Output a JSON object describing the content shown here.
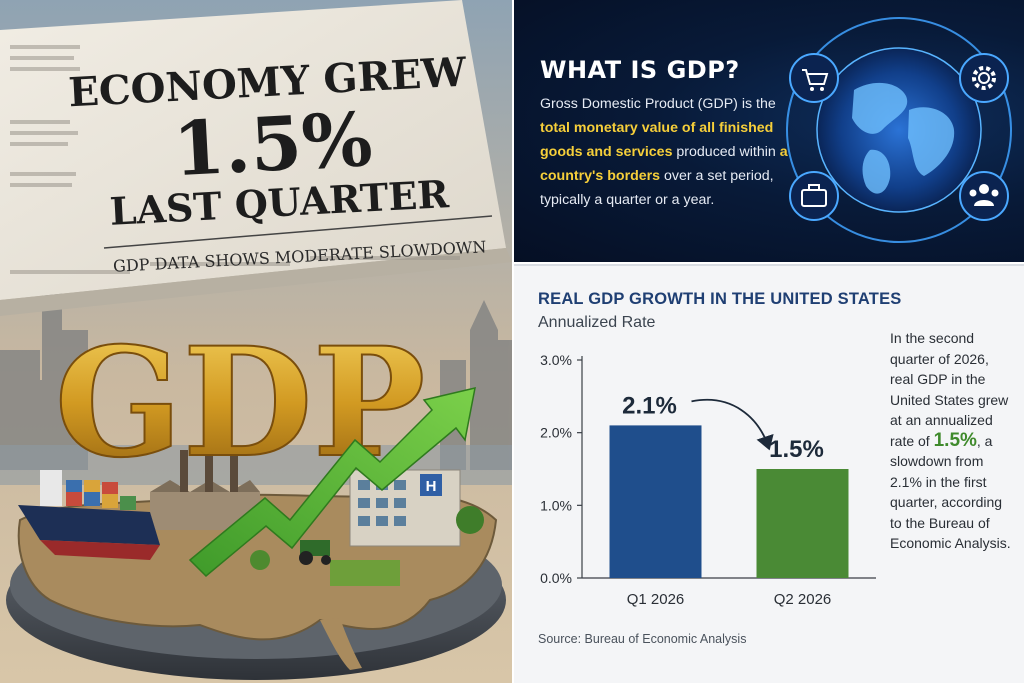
{
  "newspaper": {
    "headline_line1": "ECONOMY GREW",
    "headline_line2": "1.5%",
    "headline_line3": "LAST QUARTER",
    "subhead": "GDP DATA SHOWS MODERATE SLOWDOWN"
  },
  "sculpture": {
    "letters": "GDP",
    "building_sign": "H"
  },
  "info": {
    "title": "WHAT IS GDP?",
    "text_part1": "Gross Domestic Product (GDP) is the ",
    "text_highlight1": "total monetary value of all finished goods and services",
    "text_part2": " produced within ",
    "text_highlight2": "a country's borders",
    "text_part3": " over a set period, typically a quarter or a year.",
    "icons": [
      "shopping-cart-icon",
      "gear-icon",
      "briefcase-icon",
      "people-icon"
    ]
  },
  "chart_data": {
    "type": "bar",
    "title": "REAL GDP GROWTH IN THE UNITED STATES",
    "subtitle": "Annualized Rate",
    "categories": [
      "Q1 2026",
      "Q2 2026"
    ],
    "values": [
      2.1,
      1.5
    ],
    "value_labels": [
      "2.1%",
      "1.5%"
    ],
    "colors": [
      "#1f4e8c",
      "#4a8a35"
    ],
    "ylim": [
      0,
      3
    ],
    "yticks": [
      0,
      1,
      2,
      3
    ],
    "ytick_labels": [
      "0.0%",
      "1.0%",
      "2.0%",
      "3.0%"
    ],
    "grid": false,
    "annotation": "arrow from Q1 to Q2"
  },
  "note": {
    "part1": "In the second quarter of 2026, real GDP in the United States grew at an annualized rate of ",
    "highlight": "1.5%",
    "part2": ", a slowdown from 2.1% in the first quarter, according to the Bureau of Economic Analysis."
  },
  "source": "Source: Bureau of Economic Analysis"
}
